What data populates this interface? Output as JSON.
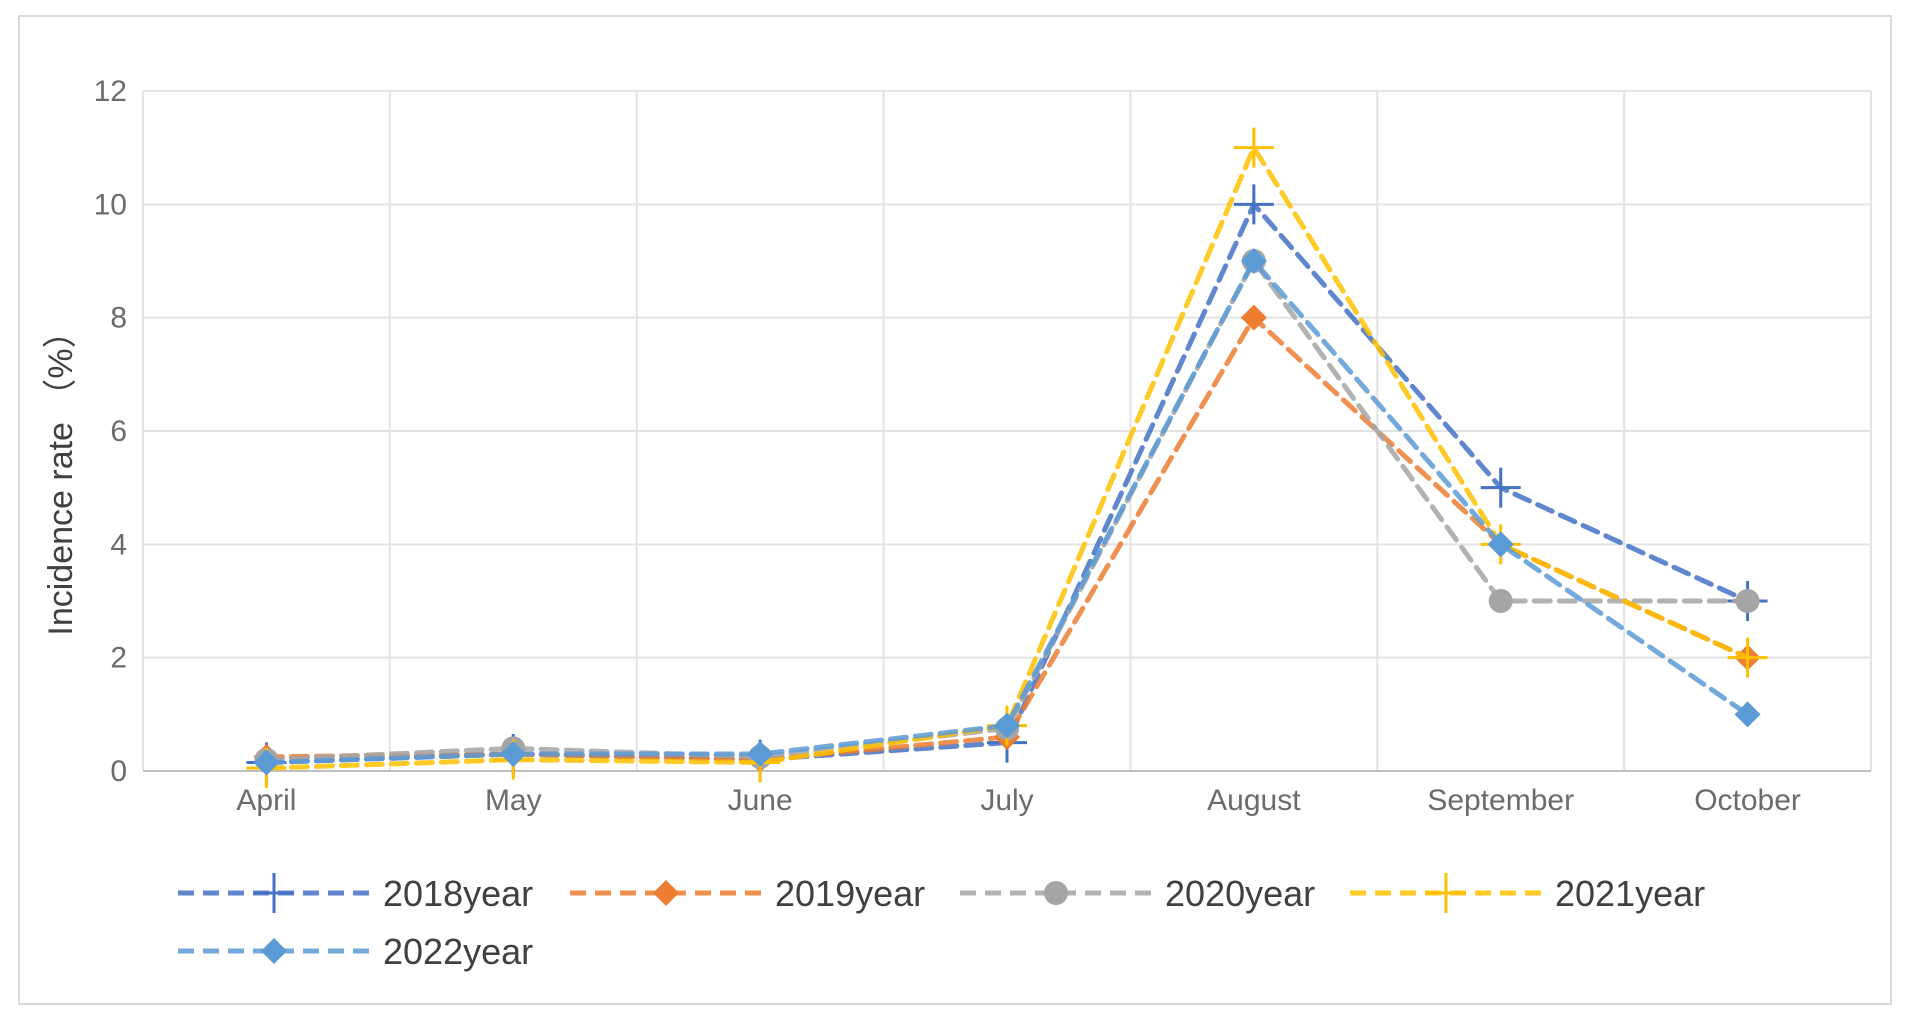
{
  "chart_data": {
    "type": "line",
    "title": "",
    "xlabel": "",
    "ylabel": "Incidence rate （%）",
    "categories": [
      "April",
      "May",
      "June",
      "July",
      "August",
      "September",
      "October"
    ],
    "ylim": [
      0,
      12
    ],
    "yticks": [
      "0",
      "2",
      "4",
      "6",
      "8",
      "10",
      "12"
    ],
    "grid": true,
    "legend_position": "bottom",
    "series": [
      {
        "name": "2018year",
        "color": "#4472c4",
        "marker": "plus",
        "values": [
          0.15,
          0.3,
          0.2,
          0.5,
          10,
          5,
          3
        ]
      },
      {
        "name": "2019year",
        "color": "#ed7d31",
        "marker": "diamond",
        "values": [
          0.25,
          0.3,
          0.2,
          0.6,
          8,
          4,
          2
        ]
      },
      {
        "name": "2020year",
        "color": "#a5a5a5",
        "marker": "circle",
        "values": [
          0.2,
          0.4,
          0.25,
          0.75,
          9,
          3,
          3
        ]
      },
      {
        "name": "2021year",
        "color": "#ffc000",
        "marker": "plus",
        "values": [
          0.05,
          0.2,
          0.15,
          0.8,
          11,
          4,
          2
        ]
      },
      {
        "name": "2022year",
        "color": "#5b9bd5",
        "marker": "diamond",
        "values": [
          0.15,
          0.3,
          0.3,
          0.8,
          9,
          4,
          1
        ]
      }
    ]
  }
}
